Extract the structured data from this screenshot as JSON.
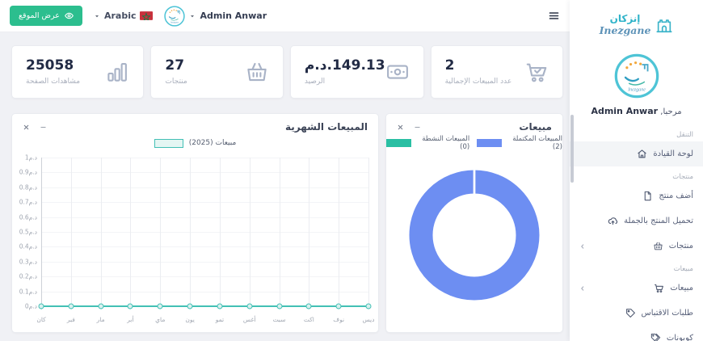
{
  "topbar": {
    "view_site": "عرض الموقع",
    "language": "Arabic",
    "user_name": "Admin Anwar"
  },
  "stats": [
    {
      "value": "25058",
      "currency": "",
      "label": "مشاهدات الصفحة",
      "icon": "bar-chart"
    },
    {
      "value": "27",
      "currency": "",
      "label": "منتجات",
      "icon": "basket"
    },
    {
      "value": "149.13",
      "currency": "د.م.",
      "label": "الرصيد",
      "icon": "banknote"
    },
    {
      "value": "2",
      "currency": "",
      "label": "عدد المبيعات الإجمالية",
      "icon": "cart-check"
    }
  ],
  "chart_data": [
    {
      "type": "line",
      "title": "المبيعات الشهرية",
      "x": [
        "كان",
        "فبر",
        "مار",
        "أبر",
        "ماي",
        "يون",
        "تمو",
        "أغس",
        "سبت",
        "اكت",
        "نوف",
        "ديس"
      ],
      "series": [
        {
          "name": "مبيعات (2025)",
          "values": [
            0,
            0,
            0,
            0,
            0,
            0,
            0,
            0,
            0,
            0,
            0,
            0
          ]
        }
      ],
      "ylim": [
        0,
        1
      ],
      "ytick_step": 0.1,
      "y_unit": "د.م",
      "line_color": "#43c0b5",
      "grid": true,
      "legend_position": "top"
    },
    {
      "type": "pie",
      "donut": true,
      "title": "مبيعات",
      "labels": [
        "المبيعات المكتملة (2)",
        "المبيعات النشطة (0)"
      ],
      "values": [
        2,
        0
      ],
      "colors": [
        "#6d8ef2",
        "#2abfa3"
      ],
      "legend_position": "top"
    }
  ],
  "sidebar": {
    "brand_ar": "إنزكان",
    "brand_en": "Inezgane",
    "welcome": "مرحبا,",
    "user_name": "Admin Anwar",
    "sections": [
      {
        "label": "التنقل",
        "items": [
          {
            "label": "لوحة القيادة",
            "icon": "home",
            "active": true
          }
        ]
      },
      {
        "label": "منتجات",
        "items": [
          {
            "label": "أضف منتج",
            "icon": "file"
          },
          {
            "label": "تحميل المنتج بالجملة",
            "icon": "cloud-upload"
          },
          {
            "label": "منتجات",
            "icon": "basket",
            "expandable": true
          }
        ]
      },
      {
        "label": "مبيعات",
        "items": [
          {
            "label": "مبيعات",
            "icon": "cart",
            "expandable": true
          },
          {
            "label": "طلبات الاقتباس",
            "icon": "tag"
          },
          {
            "label": "كوبونات",
            "icon": "tags"
          }
        ]
      }
    ]
  },
  "icons": [
    "eye-icon",
    "caret-down-icon",
    "morocco-flag-icon",
    "hamburger-icon",
    "bar-chart-icon",
    "basket-icon",
    "banknote-icon",
    "cart-check-icon",
    "home-icon",
    "file-icon",
    "cloud-upload-icon",
    "cart-icon",
    "tag-icon",
    "tags-icon",
    "chevron-left-icon",
    "close-icon",
    "minimize-icon",
    "castle-icon"
  ],
  "colors": {
    "accent_green": "#2cbe8e",
    "chart_teal": "#43c0b5",
    "chart_blue": "#6d8ef2",
    "legend_teal": "#2abfa3",
    "flag_red": "#c8313c",
    "flag_green": "#0c7c44"
  }
}
